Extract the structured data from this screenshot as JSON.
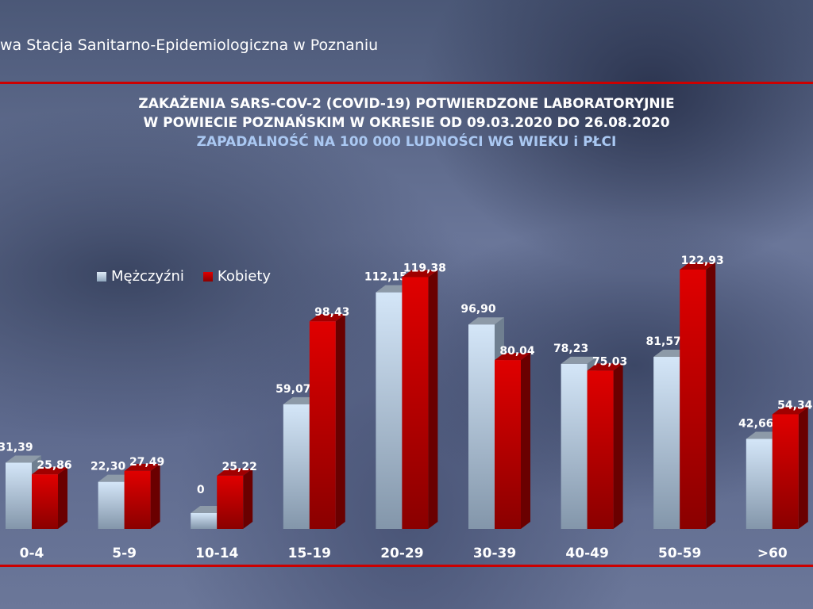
{
  "header": {
    "organization": "wa Stacja Sanitarno-Epidemiologiczna w Poznaniu"
  },
  "chart_data": {
    "type": "bar",
    "title_lines": [
      "ZAKAŻENIA SARS-COV-2 (COVID-19) POTWIERDZONE LABORATORYJNIE",
      "W POWIECIE POZNAŃSKIM W OKRESIE OD 09.03.2020 DO 26.08.2020"
    ],
    "subtitle": "ZAPADALNOŚĆ NA 100 000 LUDNOŚCI WG WIEKU i PŁCI",
    "categories": [
      "0-4",
      "5-9",
      "10-14",
      "15-19",
      "20-29",
      "30-39",
      "40-49",
      "50-59",
      ">60"
    ],
    "series": [
      {
        "name": "Mężczyźni",
        "color": "#b8d4ee",
        "values": [
          31.39,
          22.3,
          0,
          59.07,
          112.15,
          96.9,
          78.23,
          81.57,
          42.66
        ],
        "labels": [
          "31,39",
          "22,30",
          "0",
          "59,07",
          "112,15",
          "96,90",
          "78,23",
          "81,57",
          "42,66"
        ]
      },
      {
        "name": "Kobiety",
        "color": "#cc0000",
        "values": [
          25.86,
          27.49,
          25.22,
          98.43,
          119.38,
          80.04,
          75.03,
          122.93,
          54.34
        ],
        "labels": [
          "25,86",
          "27,49",
          "25,22",
          "98,43",
          "119,38",
          "80,04",
          "75,03",
          "122,93",
          "54,34"
        ]
      }
    ],
    "legend": "top-left",
    "grid": false,
    "ylim": [
      0,
      125
    ]
  }
}
